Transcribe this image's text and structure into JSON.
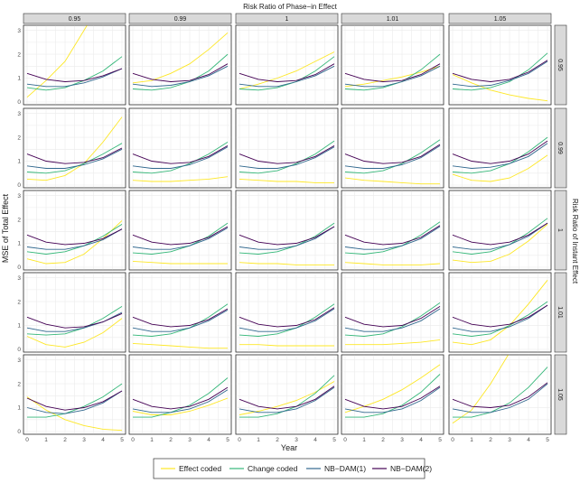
{
  "chart_data": {
    "type": "line",
    "facet_layout": "grid",
    "col_title": "Risk Ratio of Phase−in Effect",
    "row_title": "Risk Ratio of Instant Effect",
    "col_labels": [
      "0.95",
      "0.99",
      "1",
      "1.01",
      "1.05"
    ],
    "row_labels": [
      "0.95",
      "0.99",
      "1",
      "1.01",
      "1.05"
    ],
    "xlabel": "Year",
    "ylabel": "MSE of Total Effect",
    "x": [
      0,
      1,
      2,
      3,
      4,
      5
    ],
    "xlim": [
      0,
      5
    ],
    "ylim": [
      0,
      3.1
    ],
    "x_ticks": [
      0,
      1,
      2,
      3,
      4,
      5
    ],
    "y_ticks": [
      0,
      1,
      2,
      3
    ],
    "grid": true,
    "legend_position": "bottom",
    "series_meta": [
      {
        "name": "Effect coded",
        "color": "#FDE725"
      },
      {
        "name": "Change coded",
        "color": "#35B779"
      },
      {
        "name": "NB−DAM(1)",
        "color": "#31688E"
      },
      {
        "name": "NB−DAM(2)",
        "color": "#440154"
      }
    ],
    "panels": [
      [
        {
          "series": [
            [
              0.2,
              0.9,
              1.7,
              3.0,
              4.3,
              5.5
            ],
            [
              0.6,
              0.5,
              0.6,
              0.9,
              1.3,
              1.9
            ],
            [
              0.75,
              0.65,
              0.65,
              0.8,
              1.05,
              1.4
            ],
            [
              1.2,
              0.95,
              0.85,
              0.9,
              1.1,
              1.4
            ]
          ]
        },
        {
          "series": [
            [
              0.8,
              0.9,
              1.2,
              1.6,
              2.2,
              2.9
            ],
            [
              0.55,
              0.5,
              0.6,
              0.85,
              1.3,
              2.0
            ],
            [
              0.75,
              0.65,
              0.7,
              0.85,
              1.1,
              1.5
            ],
            [
              1.2,
              0.95,
              0.85,
              0.9,
              1.15,
              1.6
            ]
          ]
        },
        {
          "series": [
            [
              0.55,
              0.75,
              1.0,
              1.3,
              1.7,
              2.1
            ],
            [
              0.55,
              0.5,
              0.6,
              0.85,
              1.3,
              1.9
            ],
            [
              0.75,
              0.65,
              0.65,
              0.85,
              1.1,
              1.5
            ],
            [
              1.2,
              0.95,
              0.85,
              0.9,
              1.15,
              1.6
            ]
          ]
        },
        {
          "series": [
            [
              0.65,
              0.75,
              0.9,
              1.05,
              1.25,
              1.5
            ],
            [
              0.55,
              0.5,
              0.6,
              0.85,
              1.35,
              2.0
            ],
            [
              0.75,
              0.65,
              0.65,
              0.85,
              1.1,
              1.5
            ],
            [
              1.2,
              0.95,
              0.85,
              0.9,
              1.15,
              1.6
            ]
          ]
        },
        {
          "series": [
            [
              1.15,
              0.8,
              0.5,
              0.3,
              0.15,
              0.05
            ],
            [
              0.55,
              0.5,
              0.6,
              0.85,
              1.35,
              2.05
            ],
            [
              0.75,
              0.65,
              0.7,
              0.9,
              1.2,
              1.7
            ],
            [
              1.2,
              0.95,
              0.85,
              0.95,
              1.25,
              1.75
            ]
          ]
        }
      ],
      [
        {
          "series": [
            [
              0.25,
              0.2,
              0.4,
              0.9,
              1.8,
              2.85
            ],
            [
              0.55,
              0.5,
              0.6,
              0.9,
              1.3,
              1.75
            ],
            [
              0.8,
              0.7,
              0.7,
              0.85,
              1.1,
              1.5
            ],
            [
              1.3,
              1.0,
              0.9,
              0.95,
              1.15,
              1.55
            ]
          ]
        },
        {
          "series": [
            [
              0.2,
              0.15,
              0.15,
              0.2,
              0.25,
              0.35
            ],
            [
              0.55,
              0.5,
              0.6,
              0.9,
              1.3,
              1.8
            ],
            [
              0.8,
              0.7,
              0.7,
              0.85,
              1.15,
              1.6
            ],
            [
              1.3,
              1.0,
              0.9,
              0.95,
              1.2,
              1.65
            ]
          ]
        },
        {
          "series": [
            [
              0.25,
              0.2,
              0.15,
              0.15,
              0.1,
              0.1
            ],
            [
              0.55,
              0.5,
              0.6,
              0.9,
              1.3,
              1.85
            ],
            [
              0.8,
              0.7,
              0.7,
              0.85,
              1.15,
              1.6
            ],
            [
              1.3,
              1.0,
              0.9,
              0.95,
              1.2,
              1.65
            ]
          ]
        },
        {
          "series": [
            [
              0.3,
              0.2,
              0.15,
              0.1,
              0.05,
              0.05
            ],
            [
              0.55,
              0.5,
              0.6,
              0.9,
              1.35,
              1.9
            ],
            [
              0.8,
              0.7,
              0.7,
              0.85,
              1.15,
              1.65
            ],
            [
              1.3,
              1.0,
              0.9,
              0.95,
              1.2,
              1.7
            ]
          ]
        },
        {
          "series": [
            [
              0.45,
              0.2,
              0.15,
              0.3,
              0.7,
              1.25
            ],
            [
              0.55,
              0.5,
              0.6,
              0.9,
              1.4,
              2.0
            ],
            [
              0.8,
              0.7,
              0.75,
              0.9,
              1.2,
              1.75
            ],
            [
              1.3,
              1.0,
              0.9,
              1.0,
              1.3,
              1.85
            ]
          ]
        }
      ],
      [
        {
          "series": [
            [
              0.35,
              0.15,
              0.2,
              0.55,
              1.2,
              1.95
            ],
            [
              0.65,
              0.55,
              0.65,
              0.9,
              1.3,
              1.8
            ],
            [
              0.85,
              0.75,
              0.75,
              0.9,
              1.15,
              1.6
            ],
            [
              1.35,
              1.05,
              0.95,
              1.0,
              1.2,
              1.6
            ]
          ]
        },
        {
          "series": [
            [
              0.25,
              0.2,
              0.15,
              0.15,
              0.15,
              0.15
            ],
            [
              0.6,
              0.55,
              0.65,
              0.9,
              1.3,
              1.85
            ],
            [
              0.85,
              0.75,
              0.75,
              0.9,
              1.2,
              1.65
            ],
            [
              1.35,
              1.05,
              0.95,
              1.0,
              1.25,
              1.7
            ]
          ]
        },
        {
          "series": [
            [
              0.2,
              0.15,
              0.15,
              0.1,
              0.1,
              0.1
            ],
            [
              0.6,
              0.55,
              0.65,
              0.9,
              1.3,
              1.85
            ],
            [
              0.85,
              0.75,
              0.75,
              0.9,
              1.2,
              1.7
            ],
            [
              1.35,
              1.05,
              0.95,
              1.0,
              1.25,
              1.7
            ]
          ]
        },
        {
          "series": [
            [
              0.2,
              0.15,
              0.1,
              0.1,
              0.1,
              0.15
            ],
            [
              0.6,
              0.55,
              0.65,
              0.9,
              1.35,
              1.9
            ],
            [
              0.85,
              0.75,
              0.75,
              0.9,
              1.2,
              1.7
            ],
            [
              1.35,
              1.05,
              0.95,
              1.0,
              1.25,
              1.75
            ]
          ]
        },
        {
          "series": [
            [
              0.3,
              0.2,
              0.25,
              0.55,
              1.1,
              1.8
            ],
            [
              0.65,
              0.55,
              0.65,
              0.95,
              1.45,
              2.05
            ],
            [
              0.85,
              0.75,
              0.75,
              0.95,
              1.3,
              1.85
            ],
            [
              1.35,
              1.05,
              0.95,
              1.05,
              1.35,
              1.85
            ]
          ]
        }
      ],
      [
        {
          "series": [
            [
              0.55,
              0.2,
              0.1,
              0.3,
              0.7,
              1.3
            ],
            [
              0.65,
              0.6,
              0.65,
              0.9,
              1.3,
              1.8
            ],
            [
              0.9,
              0.75,
              0.75,
              0.9,
              1.15,
              1.55
            ],
            [
              1.35,
              1.05,
              0.9,
              0.95,
              1.15,
              1.5
            ]
          ]
        },
        {
          "series": [
            [
              0.25,
              0.2,
              0.15,
              0.1,
              0.05,
              0.05
            ],
            [
              0.6,
              0.55,
              0.65,
              0.9,
              1.35,
              1.9
            ],
            [
              0.9,
              0.75,
              0.75,
              0.9,
              1.2,
              1.65
            ],
            [
              1.35,
              1.05,
              0.95,
              1.0,
              1.25,
              1.7
            ]
          ]
        },
        {
          "series": [
            [
              0.2,
              0.2,
              0.15,
              0.15,
              0.15,
              0.15
            ],
            [
              0.6,
              0.55,
              0.65,
              0.9,
              1.35,
              1.9
            ],
            [
              0.9,
              0.75,
              0.75,
              0.9,
              1.2,
              1.7
            ],
            [
              1.35,
              1.05,
              0.95,
              1.0,
              1.25,
              1.75
            ]
          ]
        },
        {
          "series": [
            [
              0.2,
              0.2,
              0.2,
              0.25,
              0.3,
              0.4
            ],
            [
              0.6,
              0.55,
              0.65,
              0.95,
              1.4,
              1.95
            ],
            [
              0.9,
              0.75,
              0.75,
              0.9,
              1.2,
              1.7
            ],
            [
              1.35,
              1.05,
              0.95,
              1.0,
              1.3,
              1.8
            ]
          ]
        },
        {
          "series": [
            [
              0.3,
              0.2,
              0.4,
              1.0,
              1.9,
              2.9
            ],
            [
              0.65,
              0.55,
              0.65,
              1.0,
              1.45,
              2.0
            ],
            [
              0.9,
              0.75,
              0.75,
              0.95,
              1.3,
              1.85
            ],
            [
              1.35,
              1.05,
              0.95,
              1.05,
              1.35,
              1.85
            ]
          ]
        }
      ],
      [
        {
          "series": [
            [
              1.45,
              0.9,
              0.5,
              0.25,
              0.1,
              0.05
            ],
            [
              0.6,
              0.6,
              0.75,
              1.05,
              1.45,
              2.0
            ],
            [
              1.0,
              0.8,
              0.75,
              0.9,
              1.2,
              1.7
            ],
            [
              1.4,
              1.05,
              0.9,
              1.0,
              1.25,
              1.7
            ]
          ]
        },
        {
          "series": [
            [
              0.85,
              0.7,
              0.7,
              0.85,
              1.1,
              1.4
            ],
            [
              0.6,
              0.6,
              0.8,
              1.1,
              1.6,
              2.25
            ],
            [
              0.95,
              0.8,
              0.8,
              0.95,
              1.25,
              1.75
            ],
            [
              1.35,
              1.05,
              0.95,
              1.05,
              1.35,
              1.85
            ]
          ]
        },
        {
          "series": [
            [
              0.7,
              0.85,
              1.05,
              1.3,
              1.65,
              2.1
            ],
            [
              0.6,
              0.6,
              0.75,
              1.05,
              1.6,
              2.35
            ],
            [
              0.95,
              0.8,
              0.8,
              0.95,
              1.3,
              1.85
            ],
            [
              1.35,
              1.05,
              0.95,
              1.05,
              1.35,
              1.9
            ]
          ]
        },
        {
          "series": [
            [
              0.8,
              1.05,
              1.35,
              1.75,
              2.25,
              2.8
            ],
            [
              0.6,
              0.6,
              0.75,
              1.1,
              1.65,
              2.4
            ],
            [
              0.95,
              0.8,
              0.8,
              0.95,
              1.3,
              1.85
            ],
            [
              1.35,
              1.05,
              0.95,
              1.05,
              1.4,
              1.9
            ]
          ]
        },
        {
          "series": [
            [
              0.35,
              0.9,
              2.0,
              3.3,
              4.5,
              5.5
            ],
            [
              0.6,
              0.6,
              0.8,
              1.2,
              1.85,
              2.7
            ],
            [
              0.95,
              0.8,
              0.8,
              1.0,
              1.35,
              2.0
            ],
            [
              1.35,
              1.05,
              1.0,
              1.1,
              1.45,
              2.05
            ]
          ]
        }
      ]
    ]
  }
}
